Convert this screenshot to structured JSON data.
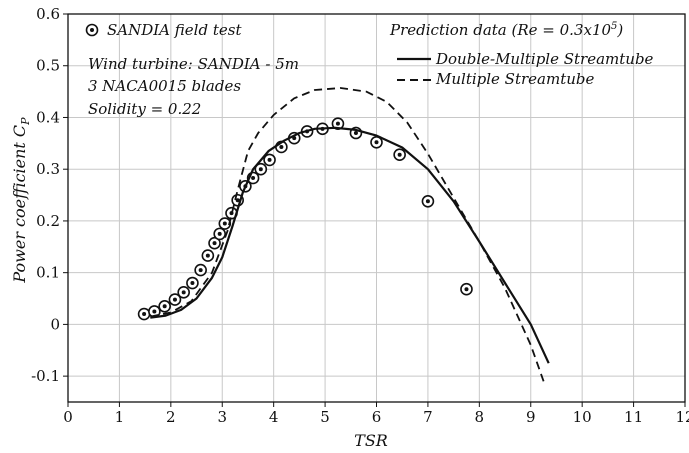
{
  "chart_data": {
    "type": "line",
    "xlabel": "TSR",
    "ylabel": "Power coefficient C",
    "ylabel_sub": "P",
    "xlim": [
      0,
      12
    ],
    "ylim": [
      -0.15,
      0.6
    ],
    "xticks": [
      0,
      1,
      2,
      3,
      4,
      5,
      6,
      7,
      8,
      9,
      10,
      11,
      12
    ],
    "yticks": [
      -0.1,
      0,
      0.1,
      0.2,
      0.3,
      0.4,
      0.5,
      0.6
    ],
    "xtick_labels": [
      "0",
      "1",
      "2",
      "3",
      "4",
      "5",
      "6",
      "7",
      "8",
      "9",
      "10",
      "11",
      "12"
    ],
    "ytick_labels": [
      "-0.1",
      "0",
      "0.1",
      "0.2",
      "0.3",
      "0.4",
      "0.5",
      "0.6"
    ],
    "grid": true,
    "legend_left": {
      "entry": "SANDIA field test",
      "notes": [
        "Wind turbine: SANDIA - 5m",
        "3 NACA0015 blades",
        "Solidity = 0.22"
      ]
    },
    "legend_right": {
      "header": "Prediction data (Re = 0.3x10",
      "header_sup": "5",
      "header_close": ")",
      "entries": [
        "Double-Multiple Streamtube",
        "Multiple Streamtube"
      ]
    },
    "series": [
      {
        "name": "SANDIA field test",
        "style": "marker",
        "points": [
          [
            1.48,
            0.02
          ],
          [
            1.68,
            0.025
          ],
          [
            1.88,
            0.035
          ],
          [
            2.08,
            0.048
          ],
          [
            2.25,
            0.062
          ],
          [
            2.42,
            0.08
          ],
          [
            2.58,
            0.105
          ],
          [
            2.72,
            0.133
          ],
          [
            2.85,
            0.157
          ],
          [
            2.95,
            0.175
          ],
          [
            3.05,
            0.195
          ],
          [
            3.18,
            0.215
          ],
          [
            3.3,
            0.24
          ],
          [
            3.45,
            0.267
          ],
          [
            3.6,
            0.283
          ],
          [
            3.75,
            0.3
          ],
          [
            3.92,
            0.318
          ],
          [
            4.15,
            0.343
          ],
          [
            4.4,
            0.36
          ],
          [
            4.65,
            0.373
          ],
          [
            4.95,
            0.378
          ],
          [
            5.25,
            0.388
          ],
          [
            5.6,
            0.37
          ],
          [
            6.0,
            0.352
          ],
          [
            6.45,
            0.328
          ],
          [
            7.0,
            0.238
          ],
          [
            7.75,
            0.068
          ]
        ]
      },
      {
        "name": "Double-Multiple Streamtube",
        "style": "solid",
        "points": [
          [
            1.6,
            0.013
          ],
          [
            1.9,
            0.017
          ],
          [
            2.2,
            0.028
          ],
          [
            2.5,
            0.05
          ],
          [
            2.8,
            0.09
          ],
          [
            3.0,
            0.13
          ],
          [
            3.2,
            0.19
          ],
          [
            3.4,
            0.255
          ],
          [
            3.6,
            0.3
          ],
          [
            3.9,
            0.335
          ],
          [
            4.2,
            0.355
          ],
          [
            4.5,
            0.37
          ],
          [
            4.8,
            0.378
          ],
          [
            5.2,
            0.38
          ],
          [
            5.6,
            0.376
          ],
          [
            6.0,
            0.365
          ],
          [
            6.5,
            0.342
          ],
          [
            7.0,
            0.3
          ],
          [
            7.5,
            0.238
          ],
          [
            8.0,
            0.16
          ],
          [
            8.5,
            0.08
          ],
          [
            9.0,
            0.0
          ],
          [
            9.35,
            -0.075
          ]
        ]
      },
      {
        "name": "Multiple Streamtube",
        "style": "dashed",
        "points": [
          [
            1.6,
            0.015
          ],
          [
            2.0,
            0.023
          ],
          [
            2.4,
            0.045
          ],
          [
            2.8,
            0.1
          ],
          [
            3.1,
            0.18
          ],
          [
            3.3,
            0.26
          ],
          [
            3.5,
            0.335
          ],
          [
            3.7,
            0.37
          ],
          [
            4.0,
            0.405
          ],
          [
            4.4,
            0.437
          ],
          [
            4.8,
            0.453
          ],
          [
            5.3,
            0.457
          ],
          [
            5.8,
            0.45
          ],
          [
            6.2,
            0.43
          ],
          [
            6.6,
            0.39
          ],
          [
            7.0,
            0.33
          ],
          [
            7.5,
            0.245
          ],
          [
            8.0,
            0.16
          ],
          [
            8.5,
            0.07
          ],
          [
            9.0,
            -0.04
          ],
          [
            9.25,
            -0.11
          ]
        ]
      }
    ]
  }
}
